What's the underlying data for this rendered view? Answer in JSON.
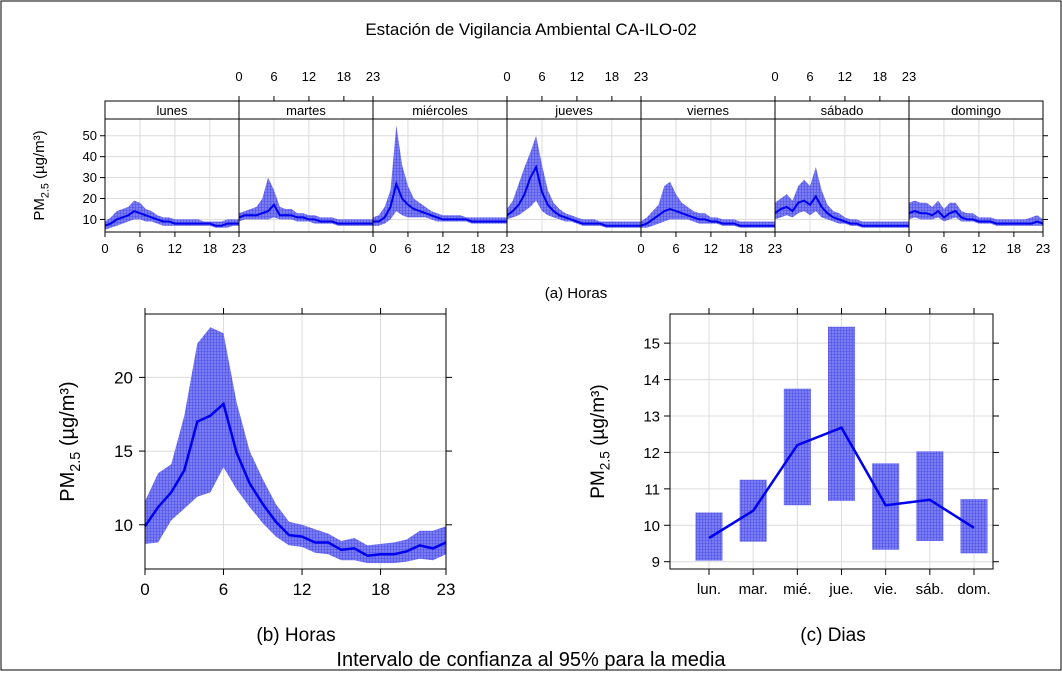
{
  "title": "Estación de Vigilancia Ambiental CA-ILO-02",
  "footer": "Intervalo de confianza al 95% para la media",
  "colors": {
    "line": "#0000ee",
    "band": "#6a6cf0",
    "grid": "#dcdcdc",
    "axis": "#000000"
  },
  "ylabel_main": "PM",
  "ylabel_sub": "2.5",
  "ylabel_unit": "(µg/m³)",
  "chart_data": [
    {
      "id": "a",
      "type": "line",
      "caption": "(a) Horas",
      "panels": [
        "lunes",
        "martes",
        "miércoles",
        "jueves",
        "viernes",
        "sábado",
        "domingo"
      ],
      "xticks": [
        0,
        6,
        12,
        18,
        23
      ],
      "yticks": [
        10,
        20,
        30,
        40,
        50
      ],
      "ylim": [
        4,
        58
      ],
      "grid": true,
      "series": [
        {
          "values": [
            [
              7,
              8,
              10,
              11,
              12,
              14,
              13,
              12,
              11,
              10,
              9,
              9,
              8,
              8,
              8,
              8,
              8,
              8,
              8,
              7,
              7,
              8,
              8,
              8
            ],
            [
              11,
              12,
              12,
              12,
              13,
              14,
              17,
              12,
              12,
              12,
              11,
              11,
              10,
              10,
              9,
              9,
              9,
              8,
              8,
              8,
              8,
              8,
              8,
              8
            ],
            [
              9,
              9,
              11,
              16,
              27,
              20,
              17,
              15,
              14,
              13,
              12,
              11,
              10,
              10,
              10,
              10,
              10,
              9,
              9,
              9,
              9,
              9,
              9,
              9
            ],
            [
              12,
              14,
              17,
              22,
              30,
              35,
              23,
              17,
              14,
              12,
              11,
              10,
              9,
              8,
              8,
              8,
              8,
              7,
              7,
              7,
              7,
              7,
              7,
              7
            ],
            [
              7,
              8,
              10,
              12,
              14,
              15,
              14,
              13,
              12,
              11,
              10,
              10,
              9,
              9,
              8,
              8,
              8,
              7,
              7,
              7,
              7,
              7,
              7,
              7
            ],
            [
              13,
              15,
              16,
              14,
              18,
              19,
              17,
              21,
              16,
              13,
              11,
              10,
              9,
              8,
              8,
              7,
              7,
              7,
              7,
              7,
              7,
              7,
              7,
              7
            ],
            [
              13,
              14,
              13,
              13,
              12,
              14,
              11,
              13,
              14,
              11,
              10,
              10,
              9,
              9,
              9,
              8,
              8,
              8,
              8,
              8,
              8,
              8,
              9,
              8
            ]
          ],
          "lower": [
            [
              5,
              6,
              7,
              8,
              9,
              10,
              10,
              9,
              9,
              8,
              7,
              7,
              7,
              7,
              7,
              7,
              7,
              7,
              7,
              6,
              6,
              6,
              7,
              7
            ],
            [
              9,
              10,
              10,
              10,
              10,
              10,
              11,
              10,
              10,
              10,
              9,
              9,
              9,
              8,
              8,
              8,
              8,
              7,
              7,
              7,
              7,
              7,
              7,
              7
            ],
            [
              7,
              7,
              8,
              10,
              14,
              12,
              11,
              11,
              11,
              11,
              10,
              9,
              9,
              9,
              9,
              9,
              9,
              8,
              8,
              8,
              8,
              8,
              8,
              8
            ],
            [
              10,
              11,
              12,
              14,
              16,
              19,
              14,
              12,
              11,
              10,
              9,
              9,
              8,
              7,
              7,
              7,
              7,
              6,
              6,
              6,
              6,
              6,
              6,
              6
            ],
            [
              6,
              6,
              7,
              8,
              9,
              10,
              10,
              10,
              10,
              9,
              8,
              8,
              8,
              8,
              7,
              7,
              7,
              6,
              6,
              6,
              6,
              6,
              6,
              6
            ],
            [
              10,
              11,
              12,
              11,
              13,
              14,
              12,
              14,
              11,
              10,
              9,
              8,
              8,
              7,
              7,
              6,
              6,
              6,
              6,
              6,
              6,
              6,
              6,
              6
            ],
            [
              10,
              11,
              10,
              10,
              10,
              11,
              9,
              10,
              11,
              9,
              9,
              9,
              8,
              8,
              8,
              7,
              7,
              7,
              7,
              7,
              7,
              7,
              7,
              7
            ]
          ],
          "upper": [
            [
              9,
              11,
              14,
              15,
              16,
              19,
              18,
              15,
              14,
              12,
              11,
              11,
              10,
              10,
              10,
              10,
              10,
              9,
              9,
              9,
              9,
              10,
              10,
              10
            ],
            [
              13,
              14,
              15,
              16,
              20,
              30,
              24,
              16,
              15,
              15,
              13,
              13,
              12,
              12,
              11,
              11,
              11,
              10,
              10,
              10,
              10,
              10,
              10,
              10
            ],
            [
              11,
              12,
              16,
              24,
              55,
              36,
              26,
              20,
              18,
              16,
              14,
              13,
              12,
              12,
              12,
              12,
              11,
              11,
              11,
              11,
              11,
              11,
              11,
              11
            ],
            [
              15,
              19,
              27,
              35,
              42,
              50,
              36,
              24,
              18,
              15,
              13,
              12,
              11,
              10,
              10,
              10,
              9,
              9,
              9,
              9,
              9,
              9,
              9,
              9
            ],
            [
              9,
              11,
              14,
              17,
              26,
              28,
              22,
              18,
              16,
              14,
              13,
              13,
              11,
              11,
              10,
              10,
              10,
              9,
              9,
              9,
              9,
              9,
              9,
              9
            ],
            [
              18,
              20,
              22,
              19,
              26,
              29,
              26,
              35,
              24,
              17,
              14,
              13,
              11,
              10,
              10,
              9,
              9,
              9,
              9,
              9,
              9,
              9,
              9,
              9
            ],
            [
              18,
              19,
              18,
              18,
              16,
              19,
              15,
              18,
              18,
              14,
              13,
              13,
              11,
              11,
              11,
              10,
              10,
              10,
              10,
              10,
              10,
              11,
              12,
              10
            ]
          ]
        }
      ]
    },
    {
      "id": "b",
      "type": "line",
      "caption": "(b) Horas",
      "x": [
        0,
        1,
        2,
        3,
        4,
        5,
        6,
        7,
        8,
        9,
        10,
        11,
        12,
        13,
        14,
        15,
        16,
        17,
        18,
        19,
        20,
        21,
        22,
        23
      ],
      "xticks": [
        0,
        6,
        12,
        18,
        23
      ],
      "yticks": [
        10,
        15,
        20
      ],
      "xlim": [
        0,
        23
      ],
      "ylim": [
        7,
        24.3
      ],
      "grid": true,
      "series": [
        {
          "values": [
            9.9,
            11.2,
            12.2,
            13.7,
            17.0,
            17.4,
            18.2,
            14.9,
            12.8,
            11.4,
            10.2,
            9.3,
            9.2,
            8.8,
            8.8,
            8.3,
            8.4,
            7.9,
            8.0,
            8.0,
            8.2,
            8.6,
            8.4,
            8.8
          ],
          "lower": [
            8.7,
            8.8,
            10.3,
            11.1,
            11.9,
            12.2,
            13.9,
            12.4,
            11.2,
            10.1,
            9.2,
            8.6,
            8.5,
            8.1,
            8.0,
            7.6,
            7.6,
            7.4,
            7.4,
            7.4,
            7.5,
            7.7,
            7.6,
            8.0
          ],
          "upper": [
            11.6,
            13.5,
            14.1,
            17.4,
            22.3,
            23.4,
            23.0,
            18.3,
            15.0,
            13.1,
            11.4,
            10.2,
            10.0,
            9.7,
            9.4,
            8.9,
            9.1,
            8.6,
            8.7,
            8.8,
            9.0,
            9.6,
            9.6,
            9.9
          ]
        }
      ]
    },
    {
      "id": "c",
      "type": "line",
      "caption": "(c) Dias",
      "categories": [
        "lun.",
        "mar.",
        "mié.",
        "jue.",
        "vie.",
        "sáb.",
        "dom."
      ],
      "yticks": [
        9,
        10,
        11,
        12,
        13,
        14,
        15
      ],
      "ylim": [
        8.8,
        15.8
      ],
      "grid": true,
      "series": [
        {
          "values": [
            9.65,
            10.4,
            12.2,
            12.68,
            10.55,
            10.7,
            9.93
          ],
          "lower": [
            9.03,
            9.55,
            10.55,
            10.67,
            9.33,
            9.57,
            9.23
          ],
          "upper": [
            10.35,
            11.25,
            13.75,
            15.45,
            11.7,
            12.03,
            10.72
          ]
        }
      ]
    }
  ]
}
